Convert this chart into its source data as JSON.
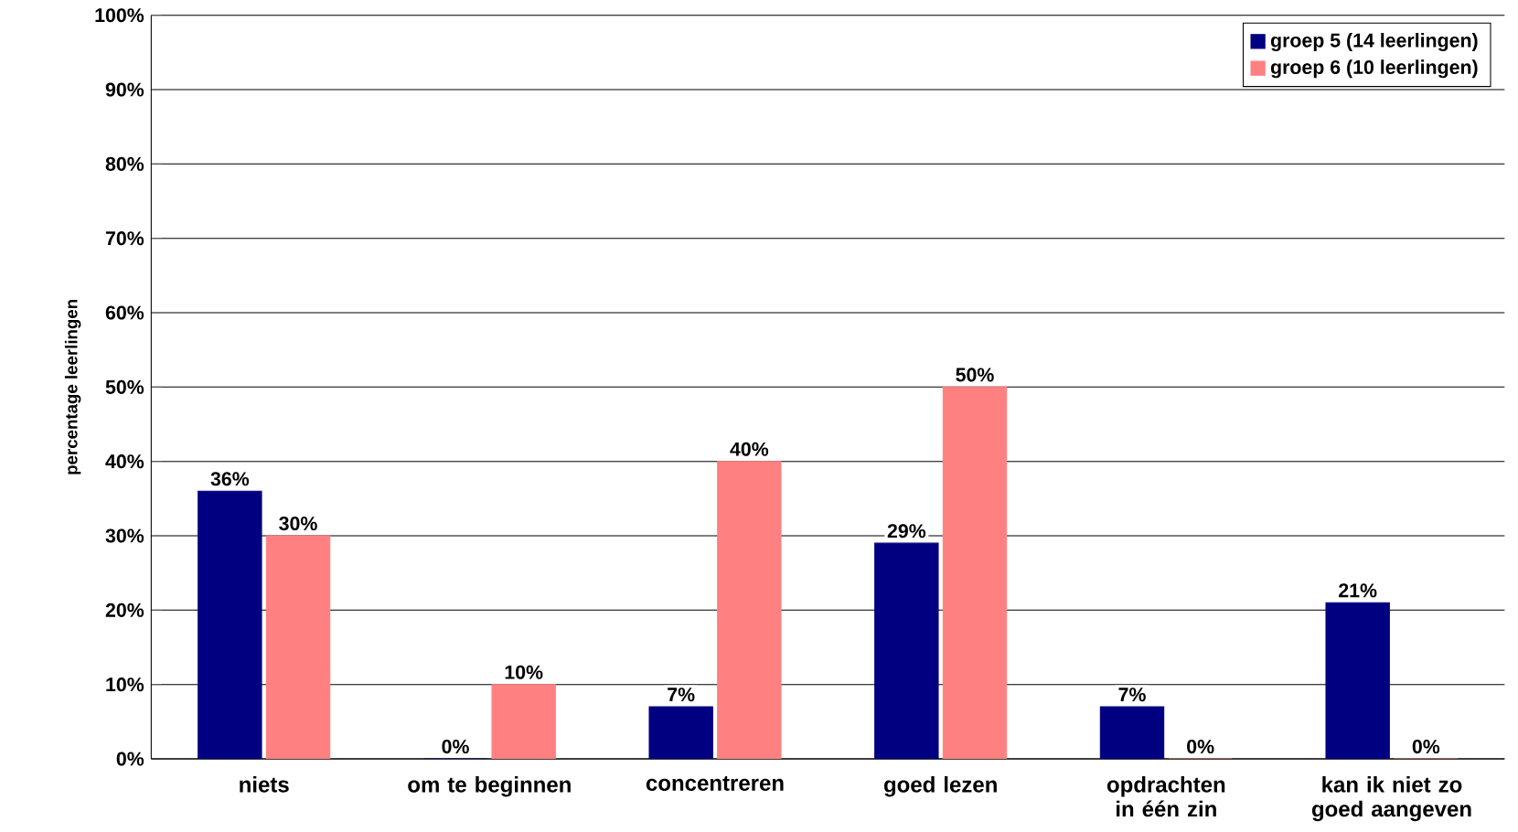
{
  "chart_data": {
    "type": "bar",
    "ylabel": "percentage leerlingen",
    "categories": [
      "niets",
      "om te beginnen",
      "concentreren",
      "goed lezen",
      "opdrachten in één zin",
      "kan ik niet zo goed aangeven"
    ],
    "series": [
      {
        "name": "groep 5 (14 leerlingen)",
        "color": "#000080",
        "values": [
          36,
          0,
          7,
          29,
          7,
          21
        ],
        "value_labels": [
          "36%",
          "0%",
          "7%",
          "29%",
          "7%",
          "21%"
        ]
      },
      {
        "name": "groep 6 (10 leerlingen)",
        "color": "#ff8080",
        "values": [
          30,
          10,
          40,
          50,
          0,
          0
        ],
        "value_labels": [
          "30%",
          "10%",
          "40%",
          "50%",
          "0%",
          "0%"
        ]
      }
    ],
    "ylim": [
      0,
      100
    ],
    "yticks": [
      {
        "value": 0,
        "label": "0%"
      },
      {
        "value": 10,
        "label": "10%"
      },
      {
        "value": 20,
        "label": "20%"
      },
      {
        "value": 30,
        "label": "30%"
      },
      {
        "value": 40,
        "label": "40%"
      },
      {
        "value": 50,
        "label": "50%"
      },
      {
        "value": 60,
        "label": "60%"
      },
      {
        "value": 70,
        "label": "70%"
      },
      {
        "value": 80,
        "label": "80%"
      },
      {
        "value": 90,
        "label": "90%"
      },
      {
        "value": 100,
        "label": "100%"
      }
    ],
    "grid": "y",
    "legend": "top right"
  }
}
